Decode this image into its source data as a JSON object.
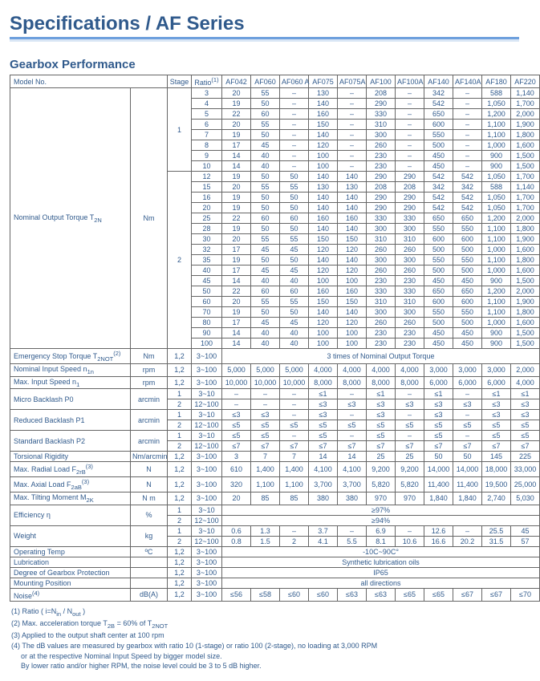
{
  "title": "Specifications / AF Series",
  "section": "Gearbox Performance",
  "colors": {
    "heading": "#305a8c",
    "border": "#666666",
    "underline_top": "#6ea0dd",
    "underline_bottom": "#d9e6f5"
  },
  "header": {
    "model_no": "Model No.",
    "stage": "Stage",
    "ratio": "Ratio",
    "ratio_sup": "(1)",
    "cols": [
      "AF042",
      "AF060",
      "AF060 A",
      "AF075",
      "AF075A",
      "AF100",
      "AF100A",
      "AF140",
      "AF140A",
      "AF180",
      "AF220"
    ]
  },
  "col_widths": {
    "label": 150,
    "unit": 46,
    "stage": 30,
    "ratio": 38,
    "data": 36
  },
  "torque": {
    "label": "Nominal Output Torque T",
    "sub": "2N",
    "unit": "Nm",
    "stage1": {
      "stage": "1",
      "rows": [
        {
          "r": "3",
          "v": [
            "20",
            "55",
            "–",
            "130",
            "–",
            "208",
            "–",
            "342",
            "–",
            "588",
            "1,140"
          ]
        },
        {
          "r": "4",
          "v": [
            "19",
            "50",
            "–",
            "140",
            "–",
            "290",
            "–",
            "542",
            "–",
            "1,050",
            "1,700"
          ]
        },
        {
          "r": "5",
          "v": [
            "22",
            "60",
            "–",
            "160",
            "–",
            "330",
            "–",
            "650",
            "–",
            "1,200",
            "2,000"
          ]
        },
        {
          "r": "6",
          "v": [
            "20",
            "55",
            "–",
            "150",
            "–",
            "310",
            "–",
            "600",
            "–",
            "1,100",
            "1,900"
          ]
        },
        {
          "r": "7",
          "v": [
            "19",
            "50",
            "–",
            "140",
            "–",
            "300",
            "–",
            "550",
            "–",
            "1,100",
            "1,800"
          ]
        },
        {
          "r": "8",
          "v": [
            "17",
            "45",
            "–",
            "120",
            "–",
            "260",
            "–",
            "500",
            "–",
            "1,000",
            "1,600"
          ]
        },
        {
          "r": "9",
          "v": [
            "14",
            "40",
            "–",
            "100",
            "–",
            "230",
            "–",
            "450",
            "–",
            "900",
            "1,500"
          ]
        },
        {
          "r": "10",
          "v": [
            "14",
            "40",
            "–",
            "100",
            "–",
            "230",
            "–",
            "450",
            "–",
            "900",
            "1,500"
          ]
        }
      ]
    },
    "stage2": {
      "stage": "2",
      "rows": [
        {
          "r": "12",
          "v": [
            "19",
            "50",
            "50",
            "140",
            "140",
            "290",
            "290",
            "542",
            "542",
            "1,050",
            "1,700"
          ]
        },
        {
          "r": "15",
          "v": [
            "20",
            "55",
            "55",
            "130",
            "130",
            "208",
            "208",
            "342",
            "342",
            "588",
            "1,140"
          ]
        },
        {
          "r": "16",
          "v": [
            "19",
            "50",
            "50",
            "140",
            "140",
            "290",
            "290",
            "542",
            "542",
            "1,050",
            "1,700"
          ]
        },
        {
          "r": "20",
          "v": [
            "19",
            "50",
            "50",
            "140",
            "140",
            "290",
            "290",
            "542",
            "542",
            "1,050",
            "1,700"
          ]
        },
        {
          "r": "25",
          "v": [
            "22",
            "60",
            "60",
            "160",
            "160",
            "330",
            "330",
            "650",
            "650",
            "1,200",
            "2,000"
          ]
        },
        {
          "r": "28",
          "v": [
            "19",
            "50",
            "50",
            "140",
            "140",
            "300",
            "300",
            "550",
            "550",
            "1,100",
            "1,800"
          ]
        },
        {
          "r": "30",
          "v": [
            "20",
            "55",
            "55",
            "150",
            "150",
            "310",
            "310",
            "600",
            "600",
            "1,100",
            "1,900"
          ]
        },
        {
          "r": "32",
          "v": [
            "17",
            "45",
            "45",
            "120",
            "120",
            "260",
            "260",
            "500",
            "500",
            "1,000",
            "1,600"
          ]
        },
        {
          "r": "35",
          "v": [
            "19",
            "50",
            "50",
            "140",
            "140",
            "300",
            "300",
            "550",
            "550",
            "1,100",
            "1,800"
          ]
        },
        {
          "r": "40",
          "v": [
            "17",
            "45",
            "45",
            "120",
            "120",
            "260",
            "260",
            "500",
            "500",
            "1,000",
            "1,600"
          ]
        },
        {
          "r": "45",
          "v": [
            "14",
            "40",
            "40",
            "100",
            "100",
            "230",
            "230",
            "450",
            "450",
            "900",
            "1,500"
          ]
        },
        {
          "r": "50",
          "v": [
            "22",
            "60",
            "60",
            "160",
            "160",
            "330",
            "330",
            "650",
            "650",
            "1,200",
            "2,000"
          ]
        },
        {
          "r": "60",
          "v": [
            "20",
            "55",
            "55",
            "150",
            "150",
            "310",
            "310",
            "600",
            "600",
            "1,100",
            "1,900"
          ]
        },
        {
          "r": "70",
          "v": [
            "19",
            "50",
            "50",
            "140",
            "140",
            "300",
            "300",
            "550",
            "550",
            "1,100",
            "1,800"
          ]
        },
        {
          "r": "80",
          "v": [
            "17",
            "45",
            "45",
            "120",
            "120",
            "260",
            "260",
            "500",
            "500",
            "1,000",
            "1,600"
          ]
        },
        {
          "r": "90",
          "v": [
            "14",
            "40",
            "40",
            "100",
            "100",
            "230",
            "230",
            "450",
            "450",
            "900",
            "1,500"
          ]
        },
        {
          "r": "100",
          "v": [
            "14",
            "40",
            "40",
            "100",
            "100",
            "230",
            "230",
            "450",
            "450",
            "900",
            "1,500"
          ]
        }
      ]
    }
  },
  "simple_rows": [
    {
      "label": "Emergency Stop Torque T",
      "sub": "2NOT",
      "sup": "(2)",
      "unit": "Nm",
      "stage": "1,2",
      "ratio": "3~100",
      "span": "3 times of Nominal Output Torque"
    },
    {
      "label": "Nominal Input Speed n",
      "sub": "1n",
      "unit": "rpm",
      "stage": "1,2",
      "ratio": "3~100",
      "v": [
        "5,000",
        "5,000",
        "5,000",
        "4,000",
        "4,000",
        "4,000",
        "4,000",
        "3,000",
        "3,000",
        "3,000",
        "2,000"
      ]
    },
    {
      "label": "Max. Input Speed n",
      "sub": "1",
      "unit": "rpm",
      "stage": "1,2",
      "ratio": "3~100",
      "v": [
        "10,000",
        "10,000",
        "10,000",
        "8,000",
        "8,000",
        "8,000",
        "8,000",
        "6,000",
        "6,000",
        "6,000",
        "4,000"
      ]
    }
  ],
  "backlash": [
    {
      "label": "Micro Backlash P0",
      "unit": "arcmin",
      "rows": [
        {
          "stage": "1",
          "ratio": "3~10",
          "v": [
            "–",
            "–",
            "–",
            "≤1",
            "–",
            "≤1",
            "–",
            "≤1",
            "–",
            "≤1",
            "≤1"
          ]
        },
        {
          "stage": "2",
          "ratio": "12~100",
          "v": [
            "–",
            "–",
            "–",
            "≤3",
            "≤3",
            "≤3",
            "≤3",
            "≤3",
            "≤3",
            "≤3",
            "≤3"
          ]
        }
      ]
    },
    {
      "label": "Reduced Backlash P1",
      "unit": "arcmin",
      "rows": [
        {
          "stage": "1",
          "ratio": "3~10",
          "v": [
            "≤3",
            "≤3",
            "–",
            "≤3",
            "–",
            "≤3",
            "–",
            "≤3",
            "–",
            "≤3",
            "≤3"
          ]
        },
        {
          "stage": "2",
          "ratio": "12~100",
          "v": [
            "≤5",
            "≤5",
            "≤5",
            "≤5",
            "≤5",
            "≤5",
            "≤5",
            "≤5",
            "≤5",
            "≤5",
            "≤5"
          ]
        }
      ]
    },
    {
      "label": "Standard Backlash P2",
      "unit": "arcmin",
      "rows": [
        {
          "stage": "1",
          "ratio": "3~10",
          "v": [
            "≤5",
            "≤5",
            "–",
            "≤5",
            "–",
            "≤5",
            "–",
            "≤5",
            "–",
            "≤5",
            "≤5"
          ]
        },
        {
          "stage": "2",
          "ratio": "12~100",
          "v": [
            "≤7",
            "≤7",
            "≤7",
            "≤7",
            "≤7",
            "≤7",
            "≤7",
            "≤7",
            "≤7",
            "≤7",
            "≤7"
          ]
        }
      ]
    }
  ],
  "simple_rows2": [
    {
      "label": "Torsional Rigidity",
      "unit": "Nm/arcmin",
      "stage": "1,2",
      "ratio": "3~100",
      "v": [
        "3",
        "7",
        "7",
        "14",
        "14",
        "25",
        "25",
        "50",
        "50",
        "145",
        "225"
      ]
    },
    {
      "label": "Max. Radial Load F",
      "sub": "2rB",
      "sup": "(3)",
      "unit": "N",
      "stage": "1,2",
      "ratio": "3~100",
      "v": [
        "610",
        "1,400",
        "1,400",
        "4,100",
        "4,100",
        "9,200",
        "9,200",
        "14,000",
        "14,000",
        "18,000",
        "33,000"
      ]
    },
    {
      "label": "Max. Axial Load F",
      "sub": "2aB",
      "sup": "(3)",
      "unit": "N",
      "stage": "1,2",
      "ratio": "3~100",
      "v": [
        "320",
        "1,100",
        "1,100",
        "3,700",
        "3,700",
        "5,820",
        "5,820",
        "11,400",
        "11,400",
        "19,500",
        "25,000"
      ]
    },
    {
      "label": "Max. Tilting Moment M",
      "sub": "2K",
      "unit": "N m",
      "stage": "1,2",
      "ratio": "3~100",
      "v": [
        "20",
        "85",
        "85",
        "380",
        "380",
        "970",
        "970",
        "1,840",
        "1,840",
        "2,740",
        "5,030"
      ]
    }
  ],
  "efficiency": {
    "label": "Efficiency η",
    "unit": "%",
    "rows": [
      {
        "stage": "1",
        "ratio": "3~10",
        "span": "≥97%"
      },
      {
        "stage": "2",
        "ratio": "12~100",
        "span": "≥94%"
      }
    ]
  },
  "weight": {
    "label": "Weight",
    "unit": "kg",
    "rows": [
      {
        "stage": "1",
        "ratio": "3~10",
        "v": [
          "0.6",
          "1.3",
          "–",
          "3.7",
          "–",
          "6.9",
          "–",
          "12.6",
          "–",
          "25.5",
          "45"
        ]
      },
      {
        "stage": "2",
        "ratio": "12~100",
        "v": [
          "0.8",
          "1.5",
          "2",
          "4.1",
          "5.5",
          "8.1",
          "10.6",
          "16.6",
          "20.2",
          "31.5",
          "57"
        ]
      }
    ]
  },
  "bottom_rows": [
    {
      "label": "Operating Temp",
      "unit": "ºC",
      "stage": "1,2",
      "ratio": "3~100",
      "span": "-10C~90C°"
    },
    {
      "label": "Lubrication",
      "unit": "",
      "stage": "1,2",
      "ratio": "3~100",
      "span": "Synthetic lubrication oils"
    },
    {
      "label": "Degree of Gearbox Protection",
      "unit": "",
      "stage": "1,2",
      "ratio": "3~100",
      "span": "IP65"
    },
    {
      "label": "Mounting Position",
      "unit": "",
      "stage": "1,2",
      "ratio": "3~100",
      "span": "all directions"
    },
    {
      "label": "Noise",
      "sup": "(4)",
      "unit": "dB(A)",
      "stage": "1,2",
      "ratio": "3~100",
      "v": [
        "≤56",
        "≤58",
        "≤60",
        "≤60",
        "≤63",
        "≤63",
        "≤65",
        "≤65",
        "≤67",
        "≤67",
        "≤70"
      ]
    }
  ],
  "footnotes": [
    "(1) Ratio ( i=N<sub>in</sub> / N<sub>out</sub> )",
    "(2) Max. acceleration torque T<sub>2B</sub> = 60% of  T<sub>2NOT</sub>",
    "(3) Applied to the output shaft center at 100 rpm",
    "(4) The dB values are measured by gearbox with ratio 10 (1-stage) or ratio 100 (2-stage), no loading at 3,000 RPM",
    "or at the respective Nominal Input Speed by bigger model size.",
    "By lower ratio and/or higher RPM, the noise level could be 3 to 5 dB higher."
  ]
}
